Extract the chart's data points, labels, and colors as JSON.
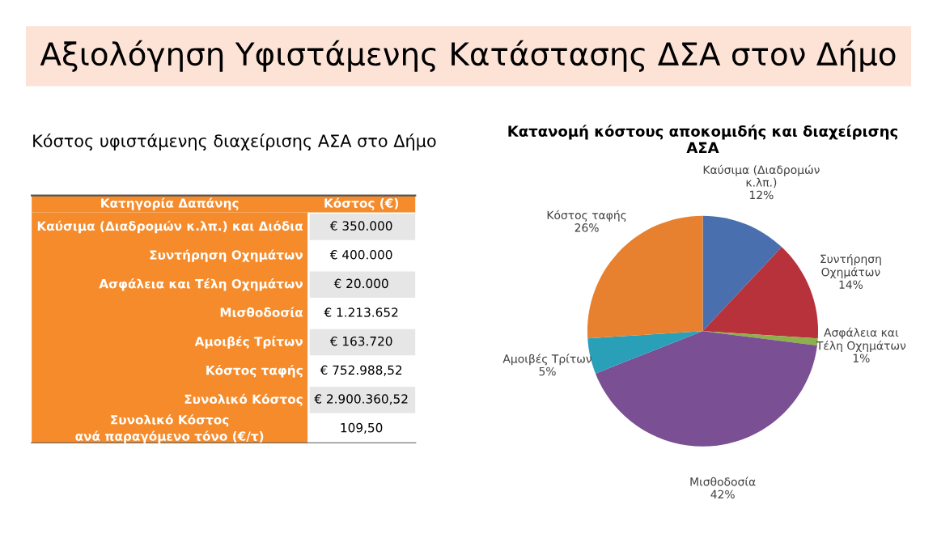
{
  "chart_data": [
    {
      "type": "other",
      "title": "Αξιολόγηση Υφιστάμενης Κατάστασης ΔΣΑ στον Δήμο",
      "subtitle": "Κόστος υφιστάμενης διαχείρισης ΑΣΑ στο Δήμο",
      "categories": [
        "Κατηγορία Δαπάνης",
        "Κόστος (€)"
      ],
      "y_categories": [
        "Καύσιμα (Διαδρομών κ.λπ.) και Διόδια",
        "Συντήρηση Οχημάτων",
        "Ασφάλεια και Τέλη Οχημάτων",
        "Μισθοδοσία",
        "Αμοιβές Τρίτων",
        "Κόστος ταφής",
        "Συνολικό Κόστος",
        "Συνολικό Κόστος\nανά παραγόμενο τόνο (€/τ)"
      ],
      "cell_labels": [
        [
          "€ 350.000"
        ],
        [
          "€ 400.000"
        ],
        [
          "€ 20.000"
        ],
        [
          "€ 1.213.652"
        ],
        [
          "€ 163.720"
        ],
        [
          "€ 752.988,52"
        ],
        [
          "€ 2.900.360,52"
        ],
        [
          "109,50"
        ]
      ]
    },
    {
      "type": "pie",
      "title": "Κατανομή κόστους αποκομιδής και διαχείρισης\nΑΣΑ",
      "categories": [
        "Καύσιμα (Διαδρομών\nκ.λπ.)",
        "Συντήρηση\nΟχημάτων",
        "Ασφάλεια και\nΤέλη Οχημάτων",
        "Μισθοδοσία",
        "Αμοιβές Τρίτων",
        "Κόστος ταφής"
      ],
      "values": [
        12,
        14,
        1,
        42,
        5,
        26
      ],
      "value_labels": [
        "12%",
        "14%",
        "1%",
        "42%",
        "5%",
        "26%"
      ],
      "colors": [
        "#4a6fae",
        "#b7323b",
        "#8db04b",
        "#7a4f94",
        "#2a9fb8",
        "#e8812f"
      ]
    }
  ]
}
